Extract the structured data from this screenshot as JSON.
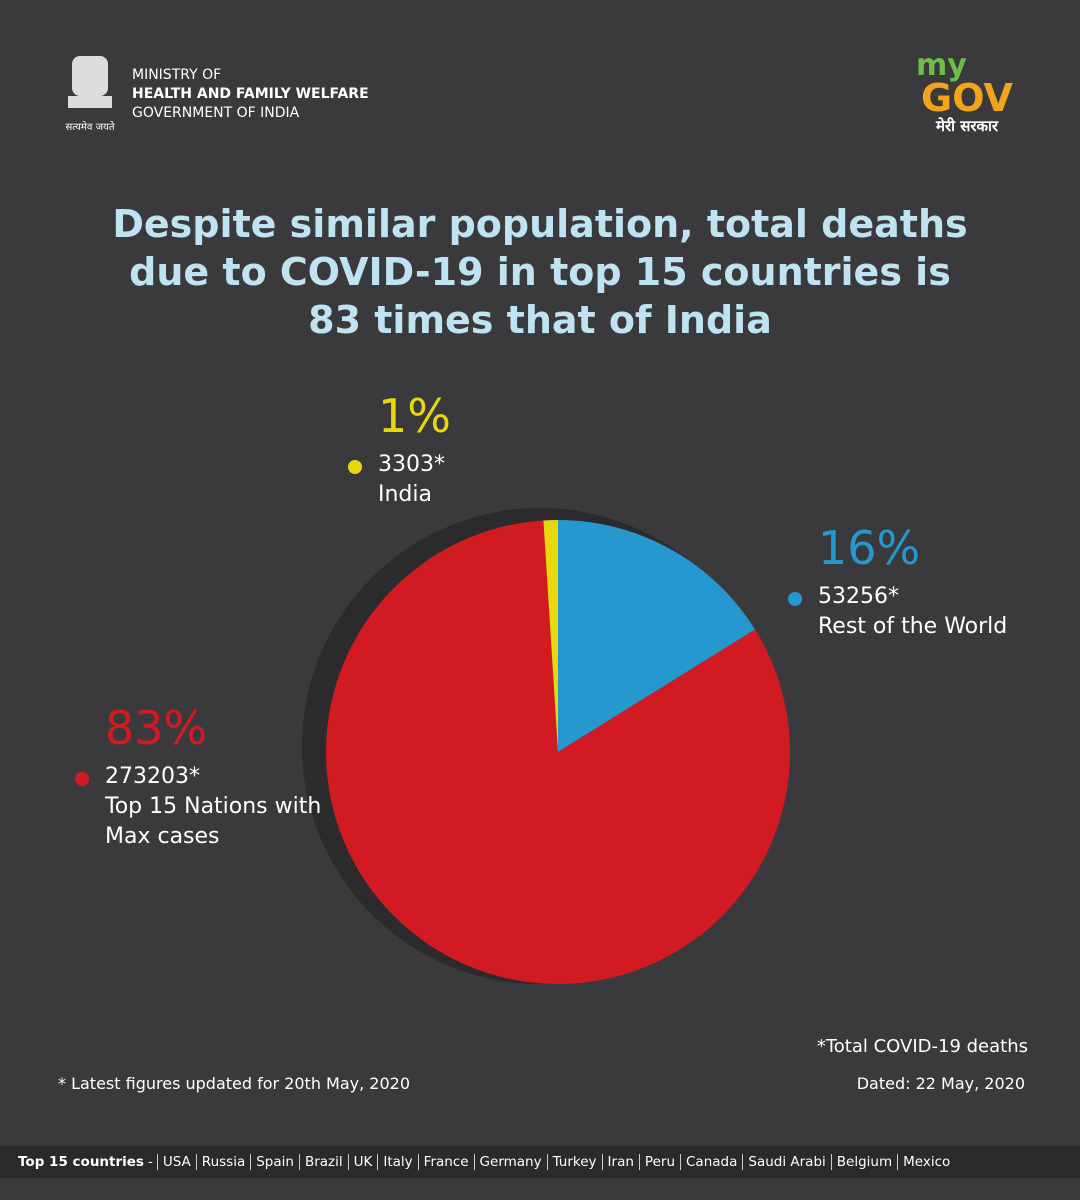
{
  "header": {
    "ministry": [
      "MINISTRY OF",
      "HEALTH AND FAMILY WELFARE",
      "GOVERNMENT OF INDIA"
    ],
    "motto": "सत्यमेव जयते",
    "logo_top": "my",
    "logo_main": "GOV",
    "logo_sub": "मेरी सरकार"
  },
  "chart_data": {
    "type": "pie",
    "title": "Despite similar population, total deaths due to COVID-19 in top 15 countries is 83 times that of India",
    "categories": [
      "Rest of the World",
      "Top 15 Nations with Max cases",
      "India"
    ],
    "values": [
      53256,
      273203,
      3303
    ],
    "value_labels": [
      "53256*",
      "273203*",
      "3303*"
    ],
    "shares": [
      16,
      83,
      1
    ],
    "share_labels": [
      "16%",
      "83%",
      "1%"
    ],
    "colors": [
      "#2598cf",
      "#d21a22",
      "#e6d70e"
    ]
  },
  "notes": {
    "definition": "*Total COVID-19 deaths",
    "updated": "* Latest figures updated for 20th May, 2020",
    "dated": "Dated: 22 May, 2020"
  },
  "footer": {
    "label": "Top 15 countries",
    "countries": [
      "USA",
      "Russia",
      "Spain",
      "Brazil",
      "UK",
      "Italy",
      "France",
      "Germany",
      "Turkey",
      "Iran",
      "Peru",
      "Canada",
      "Saudi Arabi",
      "Belgium",
      "Mexico"
    ]
  }
}
